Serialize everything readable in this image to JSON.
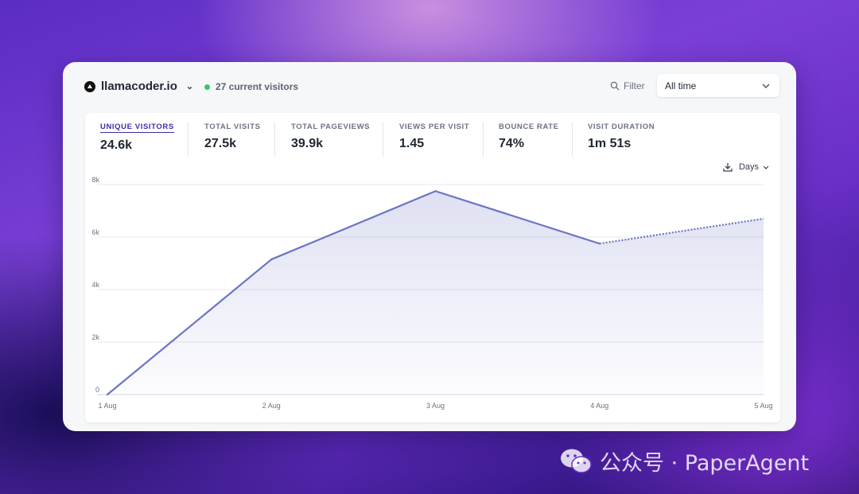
{
  "site": {
    "name": "llamacoder.io",
    "current_visitors": "27 current visitors"
  },
  "toolbar": {
    "filter_label": "Filter",
    "range_value": "All time"
  },
  "stats": [
    {
      "label": "UNIQUE VISITORS",
      "value": "24.6k"
    },
    {
      "label": "TOTAL VISITS",
      "value": "27.5k"
    },
    {
      "label": "TOTAL PAGEVIEWS",
      "value": "39.9k"
    },
    {
      "label": "VIEWS PER VISIT",
      "value": "1.45"
    },
    {
      "label": "BOUNCE RATE",
      "value": "74%"
    },
    {
      "label": "VISIT DURATION",
      "value": "1m 51s"
    }
  ],
  "interval": {
    "label": "Days"
  },
  "colors": {
    "line": "#6a74c4",
    "live_dot": "#3cc46b",
    "accent": "#3b2fa8"
  },
  "chart_data": {
    "type": "area",
    "x": [
      "1 Aug",
      "2 Aug",
      "3 Aug",
      "4 Aug",
      "5 Aug"
    ],
    "series": [
      {
        "values": [
          0,
          5150,
          7750,
          5750,
          6700
        ]
      }
    ],
    "incomplete_last_segment": true,
    "y_ticks": [
      "0",
      "2k",
      "4k",
      "6k",
      "8k"
    ],
    "ylim": [
      0,
      8000
    ],
    "grid": true
  },
  "watermark": {
    "text": "公众号 · PaperAgent"
  }
}
